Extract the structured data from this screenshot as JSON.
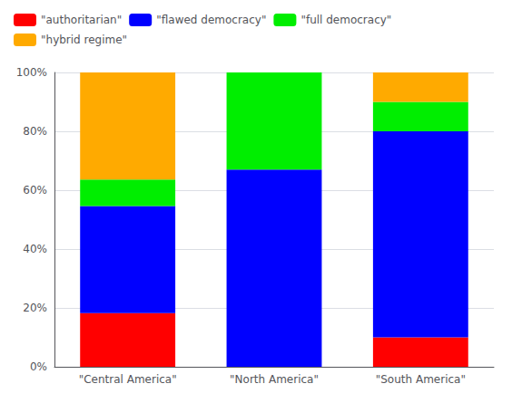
{
  "chart_data": {
    "type": "bar",
    "stacked": true,
    "categories": [
      "\"Central America\"",
      "\"North America\"",
      "\"South America\""
    ],
    "series": [
      {
        "name": "\"authoritarian\"",
        "color": "#ff0000",
        "values": [
          18.2,
          0,
          10
        ]
      },
      {
        "name": "\"flawed democracy\"",
        "color": "#0000ff",
        "values": [
          36.4,
          67,
          70
        ]
      },
      {
        "name": "\"full democracy\"",
        "color": "#00ee00",
        "values": [
          9.0,
          33,
          10
        ]
      },
      {
        "name": "\"hybrid regime\"",
        "color": "#ffaa00",
        "values": [
          36.4,
          0,
          10
        ]
      }
    ],
    "ylim": [
      0,
      100
    ],
    "yticks": [
      {
        "value": 0,
        "label": "0%"
      },
      {
        "value": 20,
        "label": "20%"
      },
      {
        "value": 40,
        "label": "40%"
      },
      {
        "value": 60,
        "label": "60%"
      },
      {
        "value": 80,
        "label": "80%"
      },
      {
        "value": 100,
        "label": "100%"
      }
    ],
    "grid": true,
    "legend": "top-left"
  }
}
